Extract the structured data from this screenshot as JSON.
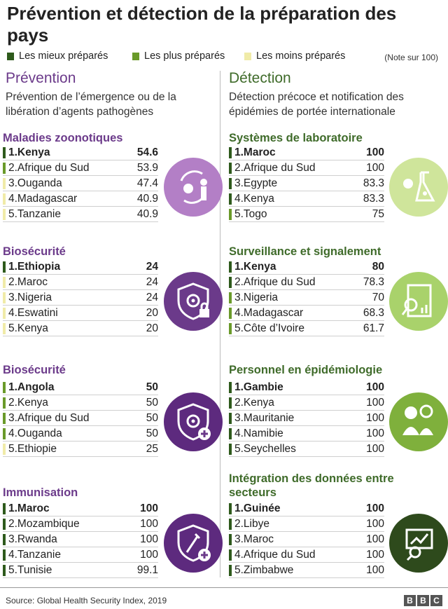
{
  "title": "Prévention et détection de la préparation des pays",
  "legend": {
    "items": [
      {
        "label": "Les mieux préparés",
        "color": "#2e5a1c"
      },
      {
        "label": "Les plus préparés",
        "color": "#6a9a2a"
      },
      {
        "label": "Les moins préparés",
        "color": "#f0eba8"
      }
    ],
    "note": "(Note sur 100)"
  },
  "colors": {
    "prevention": "#6b3a8a",
    "detection": "#3f6b2a",
    "best": "#2e5a1c",
    "more": "#6a9a2a",
    "less": "#f0eba8"
  },
  "columns": {
    "left": {
      "title": "Prévention",
      "subtitle": "Prévention de l’émergence ou de la libération d’agents pathogènes"
    },
    "right": {
      "title": "Détection",
      "subtitle": "Détection précoce et notification des épidémies de portée internationale"
    }
  },
  "chart_data": [
    {
      "type": "table",
      "column": "Prévention",
      "title": "Maladies zoonotiques",
      "icon": "zoonotic-disease-icon",
      "rows": [
        {
          "rank": "1.",
          "country": "Kenya",
          "value": "54.6",
          "level": "best"
        },
        {
          "rank": "2.",
          "country": "Afrique du Sud",
          "value": "53.9",
          "level": "more"
        },
        {
          "rank": "3.",
          "country": "Ouganda",
          "value": "47.4",
          "level": "less"
        },
        {
          "rank": "4.",
          "country": "Madagascar",
          "value": "40.9",
          "level": "less"
        },
        {
          "rank": "5.",
          "country": "Tanzanie",
          "value": "40.9",
          "level": "less"
        }
      ]
    },
    {
      "type": "table",
      "column": "Prévention",
      "title": "Biosécurité",
      "icon": "biohazard-shield-lock-icon",
      "rows": [
        {
          "rank": "1.",
          "country": "Ethiopia",
          "value": "24",
          "level": "best"
        },
        {
          "rank": "2.",
          "country": "Maroc",
          "value": "24",
          "level": "less"
        },
        {
          "rank": "3.",
          "country": "Nigeria",
          "value": "24",
          "level": "less"
        },
        {
          "rank": "4.",
          "country": "Eswatini",
          "value": "20",
          "level": "less"
        },
        {
          "rank": "5.",
          "country": "Kenya",
          "value": "20",
          "level": "less"
        }
      ]
    },
    {
      "type": "table",
      "column": "Prévention",
      "title": "Biosécurité",
      "icon": "biohazard-shield-plus-icon",
      "rows": [
        {
          "rank": "1.",
          "country": "Angola",
          "value": "50",
          "level": "more"
        },
        {
          "rank": "2.",
          "country": "Kenya",
          "value": "50",
          "level": "more"
        },
        {
          "rank": "3.",
          "country": "Afrique du Sud",
          "value": "50",
          "level": "more"
        },
        {
          "rank": "4.",
          "country": "Ouganda",
          "value": "50",
          "level": "more"
        },
        {
          "rank": "5.",
          "country": "Ethiopie",
          "value": "25",
          "level": "less"
        }
      ]
    },
    {
      "type": "table",
      "column": "Prévention",
      "title": "Immunisation",
      "icon": "vaccine-shield-icon",
      "rows": [
        {
          "rank": "1.",
          "country": "Maroc",
          "value": "100",
          "level": "best"
        },
        {
          "rank": "2.",
          "country": "Mozambique",
          "value": "100",
          "level": "best"
        },
        {
          "rank": "3.",
          "country": "Rwanda",
          "value": "100",
          "level": "best"
        },
        {
          "rank": "4.",
          "country": "Tanzanie",
          "value": "100",
          "level": "best"
        },
        {
          "rank": "5.",
          "country": "Tunisie",
          "value": "99.1",
          "level": "best"
        }
      ]
    },
    {
      "type": "table",
      "column": "Détection",
      "title": "Systèmes de laboratoire",
      "icon": "lab-flask-icon",
      "rows": [
        {
          "rank": "1.",
          "country": "Maroc",
          "value": "100",
          "level": "best"
        },
        {
          "rank": "2.",
          "country": "Afrique du Sud",
          "value": "100",
          "level": "best"
        },
        {
          "rank": "3.",
          "country": "Egypte",
          "value": "83.3",
          "level": "best"
        },
        {
          "rank": "4.",
          "country": "Kenya",
          "value": "83.3",
          "level": "best"
        },
        {
          "rank": "5.",
          "country": "Togo",
          "value": "75",
          "level": "more"
        }
      ]
    },
    {
      "type": "table",
      "column": "Détection",
      "title": "Surveillance et signalement",
      "icon": "surveillance-report-icon",
      "rows": [
        {
          "rank": "1.",
          "country": "Kenya",
          "value": "80",
          "level": "best"
        },
        {
          "rank": "2.",
          "country": "Afrique du Sud",
          "value": "78.3",
          "level": "best"
        },
        {
          "rank": "3.",
          "country": "Nigeria",
          "value": "70",
          "level": "more"
        },
        {
          "rank": "4.",
          "country": "Madagascar",
          "value": "68.3",
          "level": "more"
        },
        {
          "rank": "5.",
          "country": "Côte d’Ivoire",
          "value": "61.7",
          "level": "more"
        }
      ]
    },
    {
      "type": "table",
      "column": "Détection",
      "title": "Personnel en épidémiologie",
      "icon": "epidemiology-staff-icon",
      "rows": [
        {
          "rank": "1.",
          "country": "Gambie",
          "value": "100",
          "level": "best"
        },
        {
          "rank": "2.",
          "country": "Kenya",
          "value": "100",
          "level": "best"
        },
        {
          "rank": "3.",
          "country": "Mauritanie",
          "value": "100",
          "level": "best"
        },
        {
          "rank": "4.",
          "country": "Namibie",
          "value": "100",
          "level": "best"
        },
        {
          "rank": "5.",
          "country": "Seychelles",
          "value": "100",
          "level": "best"
        }
      ]
    },
    {
      "type": "table",
      "column": "Détection",
      "title": "Intégration des données entre secteurs",
      "icon": "data-integration-icon",
      "rows": [
        {
          "rank": "1.",
          "country": "Guinée",
          "value": "100",
          "level": "best"
        },
        {
          "rank": "2.",
          "country": "Libye",
          "value": "100",
          "level": "best"
        },
        {
          "rank": "3.",
          "country": "Maroc",
          "value": "100",
          "level": "best"
        },
        {
          "rank": "4.",
          "country": "Afrique du Sud",
          "value": "100",
          "level": "best"
        },
        {
          "rank": "5.",
          "country": "Zimbabwe",
          "value": "100",
          "level": "best"
        }
      ]
    }
  ],
  "footer": {
    "source": "Source:  Global Health Security Index, 2019",
    "brand": [
      "B",
      "B",
      "C"
    ]
  }
}
